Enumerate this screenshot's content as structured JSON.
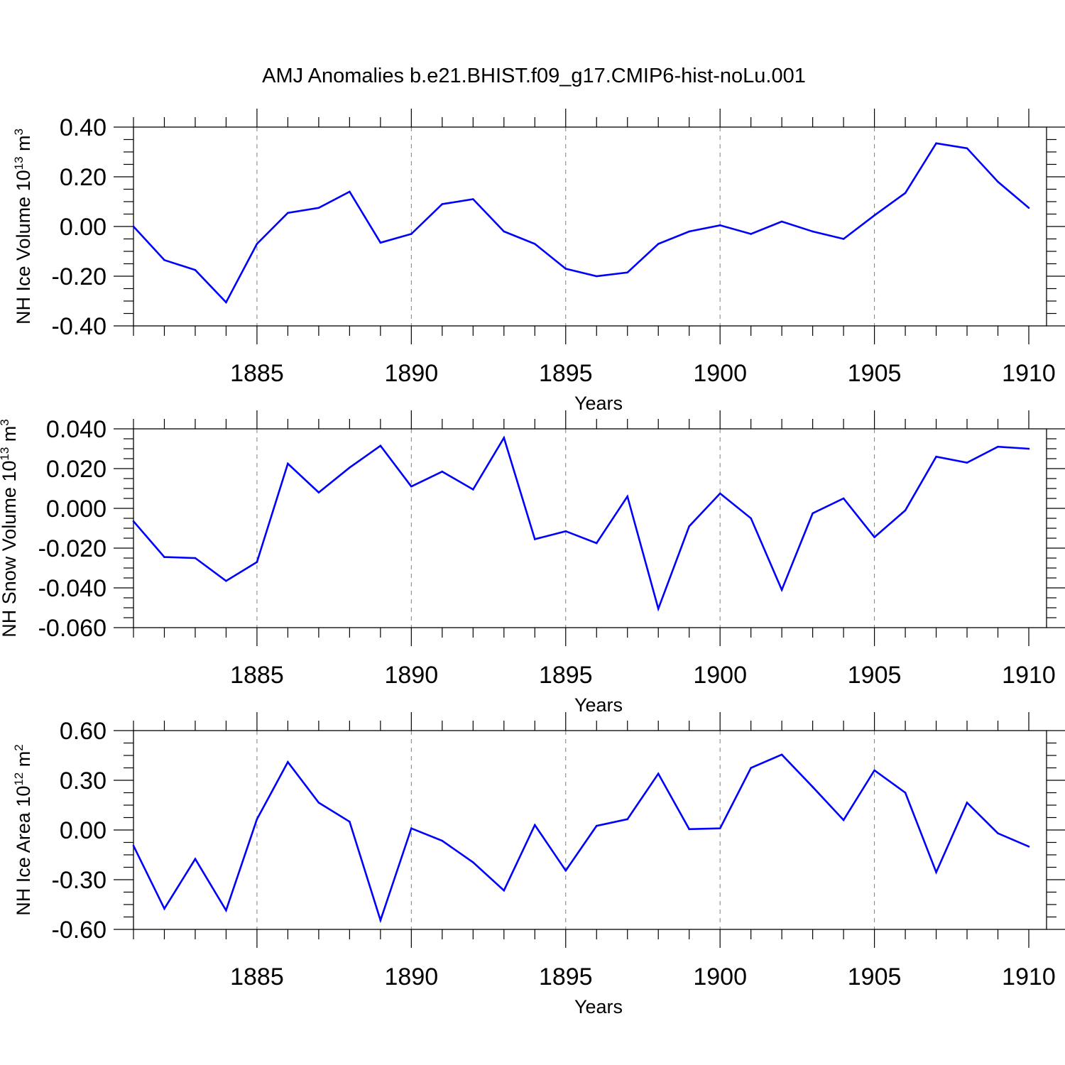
{
  "title": "AMJ Anomalies b.e21.BHIST.f09_g17.CMIP6-hist-noLu.001",
  "colors": {
    "line": "#0000ff",
    "axes": "#000000",
    "grid": "#808080",
    "background": "#ffffff"
  },
  "chart_data": [
    {
      "type": "line",
      "title": "AMJ Anomalies b.e21.BHIST.f09_g17.CMIP6-hist-noLu.001",
      "xlabel": "Years",
      "ylabel": {
        "main": "NH Ice Volume 10",
        "exp": "13",
        "unit": " m",
        "unitexp": "3"
      },
      "xlim": [
        1881,
        1910
      ],
      "ylim": [
        -0.4,
        0.4
      ],
      "xticks": [
        1885,
        1890,
        1895,
        1900,
        1905,
        1910
      ],
      "xtick_labels": [
        "1885",
        "1890",
        "1895",
        "1900",
        "1905",
        "1910"
      ],
      "yticks": [
        -0.4,
        -0.2,
        0.0,
        0.2,
        0.4
      ],
      "ytick_labels": [
        "-0.40",
        "-0.20",
        "0.00",
        "0.20",
        "0.40"
      ],
      "grid": "vertical dashed at major x ticks",
      "x": [
        1881,
        1882,
        1883,
        1884,
        1885,
        1886,
        1887,
        1888,
        1889,
        1890,
        1891,
        1892,
        1893,
        1894,
        1895,
        1896,
        1897,
        1898,
        1899,
        1900,
        1901,
        1902,
        1903,
        1904,
        1905,
        1906,
        1907,
        1908,
        1909,
        1910
      ],
      "series": [
        {
          "values": [
            0.0,
            -0.135,
            -0.175,
            -0.305,
            -0.07,
            0.055,
            0.075,
            0.14,
            -0.065,
            -0.03,
            0.09,
            0.11,
            -0.02,
            -0.07,
            -0.17,
            -0.2,
            -0.185,
            -0.07,
            -0.02,
            0.005,
            -0.03,
            0.02,
            -0.02,
            -0.05,
            0.045,
            0.135,
            0.335,
            0.315,
            0.18,
            0.075
          ]
        }
      ]
    },
    {
      "type": "line",
      "xlabel": "Years",
      "ylabel": {
        "main": "NH Snow Volume 10",
        "exp": "13",
        "unit": " m",
        "unitexp": "3"
      },
      "xlim": [
        1881,
        1910
      ],
      "ylim": [
        -0.06,
        0.04
      ],
      "xticks": [
        1885,
        1890,
        1895,
        1900,
        1905,
        1910
      ],
      "xtick_labels": [
        "1885",
        "1890",
        "1895",
        "1900",
        "1905",
        "1910"
      ],
      "yticks": [
        -0.06,
        -0.04,
        -0.02,
        0.0,
        0.02,
        0.04
      ],
      "ytick_labels": [
        "-0.060",
        "-0.040",
        "-0.020",
        "0.000",
        "0.020",
        "0.040"
      ],
      "grid": "vertical dashed at major x ticks",
      "x": [
        1881,
        1882,
        1883,
        1884,
        1885,
        1886,
        1887,
        1888,
        1889,
        1890,
        1891,
        1892,
        1893,
        1894,
        1895,
        1896,
        1897,
        1898,
        1899,
        1900,
        1901,
        1902,
        1903,
        1904,
        1905,
        1906,
        1907,
        1908,
        1909,
        1910
      ],
      "series": [
        {
          "values": [
            -0.0065,
            -0.0245,
            -0.025,
            -0.0365,
            -0.027,
            0.0225,
            0.008,
            0.0205,
            0.0315,
            0.011,
            0.0185,
            0.0095,
            0.0355,
            -0.0155,
            -0.0115,
            -0.0175,
            0.006,
            -0.0505,
            -0.009,
            0.0075,
            -0.005,
            -0.041,
            -0.0025,
            0.005,
            -0.0145,
            -0.001,
            0.026,
            0.023,
            0.031,
            0.03
          ]
        }
      ]
    },
    {
      "type": "line",
      "xlabel": "Years",
      "ylabel": {
        "main": "NH Ice Area 10",
        "exp": "12",
        "unit": " m",
        "unitexp": "2"
      },
      "xlim": [
        1881,
        1910
      ],
      "ylim": [
        -0.6,
        0.6
      ],
      "xticks": [
        1885,
        1890,
        1895,
        1900,
        1905,
        1910
      ],
      "xtick_labels": [
        "1885",
        "1890",
        "1895",
        "1900",
        "1905",
        "1910"
      ],
      "yticks": [
        -0.6,
        -0.3,
        0.0,
        0.3,
        0.6
      ],
      "ytick_labels": [
        "-0.60",
        "-0.30",
        "0.00",
        "0.30",
        "0.60"
      ],
      "grid": "vertical dashed at major x ticks",
      "x": [
        1881,
        1882,
        1883,
        1884,
        1885,
        1886,
        1887,
        1888,
        1889,
        1890,
        1891,
        1892,
        1893,
        1894,
        1895,
        1896,
        1897,
        1898,
        1899,
        1900,
        1901,
        1902,
        1903,
        1904,
        1905,
        1906,
        1907,
        1908,
        1909,
        1910
      ],
      "series": [
        {
          "values": [
            -0.095,
            -0.475,
            -0.175,
            -0.485,
            0.065,
            0.41,
            0.165,
            0.05,
            -0.545,
            0.01,
            -0.065,
            -0.195,
            -0.365,
            0.03,
            -0.245,
            0.025,
            0.065,
            0.34,
            0.005,
            0.01,
            0.375,
            0.455,
            0.26,
            0.06,
            0.36,
            0.225,
            -0.255,
            0.165,
            -0.02,
            -0.1
          ]
        }
      ]
    }
  ]
}
